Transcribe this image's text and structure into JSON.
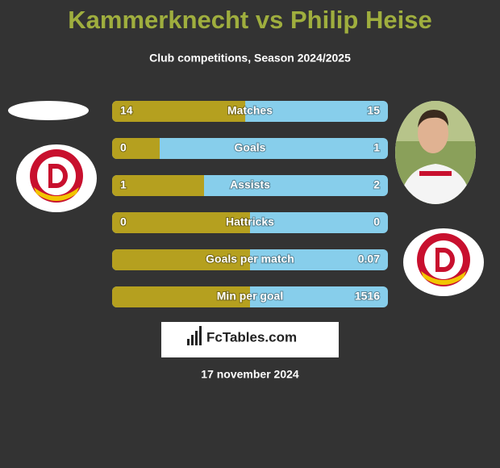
{
  "header": {
    "title": "Kammerknecht vs Philip Heise",
    "subtitle": "Club competitions, Season 2024/2025"
  },
  "rows": [
    {
      "label": "Matches",
      "left": 14,
      "right": 15
    },
    {
      "label": "Goals",
      "left": 0,
      "right": 1
    },
    {
      "label": "Assists",
      "left": 1,
      "right": 2
    },
    {
      "label": "Hattricks",
      "left": 0,
      "right": 0
    },
    {
      "label": "Goals per match",
      "left": null,
      "right": 0.07
    },
    {
      "label": "Min per goal",
      "left": null,
      "right": 1516
    }
  ],
  "footer": {
    "brand": "FcTables.com",
    "date": "17 november 2024"
  }
}
